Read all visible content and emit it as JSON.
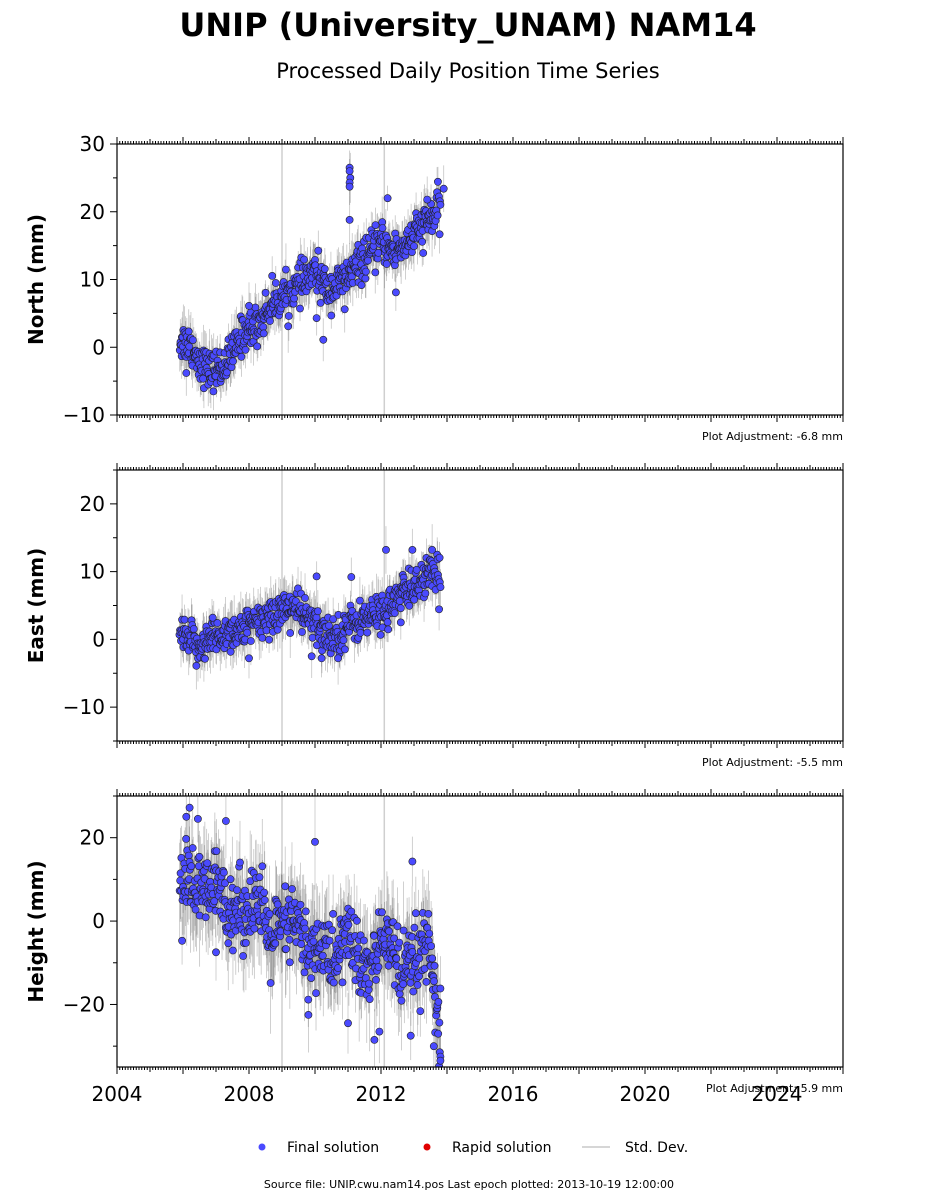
{
  "chart_data": {
    "type": "scatter",
    "title": "UNIP (University_UNAM) NAM14",
    "subtitle": "Processed Daily Position Time Series",
    "x_ticks": [
      "2004",
      "2008",
      "2012",
      "2016",
      "2020",
      "2024"
    ],
    "xlim": [
      2004,
      2026
    ],
    "event_lines": [
      2009.0,
      2012.1
    ],
    "panels": [
      {
        "ylabel": "North (mm)",
        "ylim": [
          -10,
          30
        ],
        "y_ticks": [
          -10,
          0,
          10,
          20,
          30
        ],
        "y_tick_labels": [
          "−10",
          "0",
          "10",
          "20",
          "30"
        ],
        "adjustment_label": "Plot Adjustment: -6.8 mm",
        "trend": [
          [
            2005.9,
            1.0
          ],
          [
            2006.2,
            0.5
          ],
          [
            2006.5,
            -2.0
          ],
          [
            2006.8,
            -3.5
          ],
          [
            2007.2,
            -3.0
          ],
          [
            2007.5,
            -1.0
          ],
          [
            2007.8,
            2.0
          ],
          [
            2008.3,
            3.5
          ],
          [
            2008.7,
            6.5
          ],
          [
            2009.2,
            8.0
          ],
          [
            2009.6,
            9.5
          ],
          [
            2010.0,
            11.0
          ],
          [
            2010.4,
            8.5
          ],
          [
            2010.8,
            9.5
          ],
          [
            2011.2,
            11.5
          ],
          [
            2011.6,
            13.5
          ],
          [
            2012.0,
            15.5
          ],
          [
            2012.4,
            14.0
          ],
          [
            2012.8,
            15.5
          ],
          [
            2013.2,
            17.5
          ],
          [
            2013.8,
            20.5
          ]
        ],
        "scatter_sd": 1.4,
        "outliers": [
          [
            2011.05,
            26.5
          ],
          [
            2011.05,
            26.0
          ],
          [
            2011.07,
            25.0
          ],
          [
            2011.05,
            24.3
          ],
          [
            2011.05,
            23.7
          ],
          [
            2011.05,
            18.8
          ],
          [
            2012.2,
            22.0
          ],
          [
            2012.45,
            8.1
          ],
          [
            2010.25,
            1.1
          ],
          [
            2010.05,
            4.3
          ],
          [
            2010.9,
            5.6
          ],
          [
            2013.4,
            21.8
          ],
          [
            2013.9,
            23.4
          ],
          [
            2006.1,
            -3.8
          ],
          [
            2008.0,
            6.1
          ]
        ]
      },
      {
        "ylabel": "East (mm)",
        "ylim": [
          -15,
          25
        ],
        "y_ticks": [
          -10,
          0,
          10,
          20
        ],
        "y_tick_labels": [
          "−10",
          "0",
          "10",
          "20"
        ],
        "adjustment_label": "Plot Adjustment: -5.5 mm",
        "trend": [
          [
            2005.9,
            0.5
          ],
          [
            2006.4,
            -1.0
          ],
          [
            2006.8,
            0.0
          ],
          [
            2007.3,
            1.0
          ],
          [
            2007.8,
            1.5
          ],
          [
            2008.3,
            2.5
          ],
          [
            2008.8,
            4.0
          ],
          [
            2009.3,
            5.0
          ],
          [
            2009.8,
            3.0
          ],
          [
            2010.2,
            1.0
          ],
          [
            2010.6,
            0.5
          ],
          [
            2011.0,
            2.0
          ],
          [
            2011.5,
            3.0
          ],
          [
            2012.0,
            4.0
          ],
          [
            2012.5,
            6.0
          ],
          [
            2013.0,
            8.0
          ],
          [
            2013.5,
            9.5
          ],
          [
            2013.8,
            8.5
          ]
        ],
        "scatter_sd": 1.4,
        "outliers": [
          [
            2012.15,
            13.2
          ],
          [
            2012.95,
            13.2
          ],
          [
            2013.55,
            13.2
          ],
          [
            2010.05,
            9.3
          ],
          [
            2011.1,
            9.2
          ],
          [
            2009.9,
            -2.5
          ],
          [
            2010.2,
            -2.8
          ],
          [
            2010.7,
            -2.8
          ],
          [
            2008.0,
            -2.8
          ],
          [
            2006.9,
            3.2
          ],
          [
            2012.6,
            2.5
          ]
        ]
      },
      {
        "ylabel": "Height (mm)",
        "ylim": [
          -35,
          30
        ],
        "y_ticks": [
          -20,
          0,
          20
        ],
        "y_tick_labels": [
          "−20",
          "0",
          "20"
        ],
        "adjustment_label": "Plot Adjustment: 5.9 mm",
        "trend": [
          [
            2005.9,
            8.0
          ],
          [
            2006.2,
            10.0
          ],
          [
            2006.6,
            6.0
          ],
          [
            2007.0,
            8.0
          ],
          [
            2007.4,
            4.0
          ],
          [
            2007.8,
            2.0
          ],
          [
            2008.2,
            6.0
          ],
          [
            2008.6,
            -4.0
          ],
          [
            2009.0,
            -2.0
          ],
          [
            2009.4,
            0.0
          ],
          [
            2009.8,
            -8.0
          ],
          [
            2010.2,
            -6.0
          ],
          [
            2010.6,
            -10.0
          ],
          [
            2011.0,
            -2.0
          ],
          [
            2011.4,
            -12.0
          ],
          [
            2011.8,
            -10.0
          ],
          [
            2012.2,
            -2.0
          ],
          [
            2012.6,
            -14.0
          ],
          [
            2013.0,
            -10.0
          ],
          [
            2013.4,
            -6.0
          ],
          [
            2013.65,
            -18.0
          ],
          [
            2013.8,
            -28.0
          ]
        ],
        "scatter_sd": 4.5,
        "outliers": [
          [
            2006.2,
            27.2
          ],
          [
            2006.1,
            25.0
          ],
          [
            2006.45,
            24.5
          ],
          [
            2007.3,
            24.0
          ],
          [
            2010.0,
            19.0
          ],
          [
            2012.95,
            14.3
          ],
          [
            2011.8,
            -28.5
          ],
          [
            2011.95,
            -26.5
          ],
          [
            2013.6,
            -30.0
          ],
          [
            2013.8,
            -32.5
          ],
          [
            2013.8,
            -33.5
          ],
          [
            2009.8,
            -22.5
          ],
          [
            2011.0,
            -24.5
          ],
          [
            2007.0,
            -7.5
          ],
          [
            2012.9,
            -27.5
          ]
        ]
      }
    ],
    "legend": [
      {
        "label": "Final solution",
        "color": "#4a4aff",
        "marker": "circle"
      },
      {
        "label": "Rapid solution",
        "color": "#e00000",
        "marker": "circle"
      },
      {
        "label": "Std. Dev.",
        "color": "#c8c8c8",
        "marker": "line"
      }
    ],
    "footer": "Source file: UNIP.cwu.nam14.pos  Last epoch plotted: 2013-10-19 12:00:00",
    "series": [
      {
        "name": "Final solution",
        "x_range": [
          2005.9,
          2013.8
        ],
        "color": "#4a4aff"
      }
    ]
  }
}
